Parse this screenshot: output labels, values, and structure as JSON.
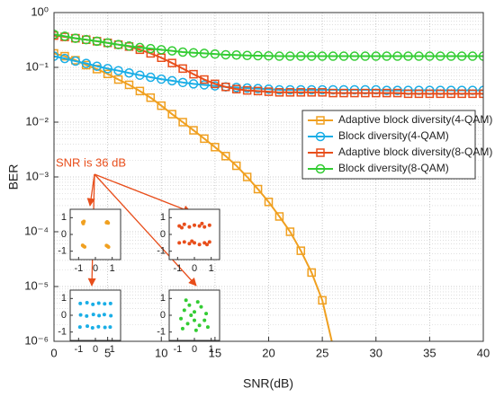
{
  "chart_data": [
    {
      "type": "line",
      "x_label": "SNR(dB)",
      "y_label": "BER",
      "y_log": true,
      "grid": true,
      "legend": "east",
      "annotation": "SNR is 36 dB",
      "x": [
        0,
        1,
        2,
        3,
        4,
        5,
        6,
        7,
        8,
        9,
        10,
        11,
        12,
        13,
        14,
        15,
        16,
        17,
        18,
        19,
        20,
        21,
        22,
        23,
        24,
        25,
        26,
        27,
        28,
        29,
        30,
        31,
        32,
        33,
        34,
        35,
        36,
        37,
        38,
        39,
        40
      ],
      "xlim": [
        0,
        40
      ],
      "xticks": [
        0,
        5,
        10,
        15,
        20,
        25,
        30,
        35,
        40
      ],
      "ylim": [
        1e-06,
        1
      ],
      "yticks": [
        {
          "value": 1,
          "label": "10⁰"
        },
        {
          "value": 0.1,
          "label": "10⁻¹"
        },
        {
          "value": 0.01,
          "label": "10⁻²"
        },
        {
          "value": 0.001,
          "label": "10⁻³"
        },
        {
          "value": 0.0001,
          "label": "10⁻⁴"
        },
        {
          "value": 1e-05,
          "label": "10⁻⁵"
        },
        {
          "value": 1e-06,
          "label": "10⁻⁶"
        }
      ],
      "series": [
        {
          "name": "Adaptive block diversity(4-QAM)",
          "color": "#f0a020",
          "marker": "square",
          "values": [
            0.18,
            0.16,
            0.135,
            0.11,
            0.093,
            0.076,
            0.06,
            0.048,
            0.037,
            0.028,
            0.02,
            0.014,
            0.01,
            0.0071,
            0.005,
            0.0035,
            0.0024,
            0.0016,
            0.001,
            0.0006,
            0.00035,
            0.00019,
            0.0001,
            4.5e-05,
            1.8e-05,
            5.6e-06,
            8e-07,
            null,
            null,
            null,
            null,
            null,
            null,
            null,
            null,
            null,
            null,
            null,
            null,
            null,
            null
          ]
        },
        {
          "name": "Block diversity(4-QAM)",
          "color": "#1aaee6",
          "marker": "circle",
          "values": [
            0.16,
            0.145,
            0.13,
            0.118,
            0.105,
            0.095,
            0.087,
            0.079,
            0.072,
            0.066,
            0.061,
            0.057,
            0.053,
            0.05,
            0.048,
            0.046,
            0.044,
            0.043,
            0.042,
            0.041,
            0.04,
            0.039,
            0.039,
            0.039,
            0.039,
            0.039,
            0.039,
            0.039,
            0.039,
            0.039,
            0.039,
            0.038,
            0.038,
            0.038,
            0.038,
            0.038,
            0.038,
            0.038,
            0.038,
            0.038,
            0.038
          ]
        },
        {
          "name": "Adaptive block diversity(8-QAM)",
          "color": "#e84e1b",
          "marker": "square",
          "values": [
            0.38,
            0.36,
            0.34,
            0.32,
            0.3,
            0.28,
            0.26,
            0.24,
            0.21,
            0.18,
            0.15,
            0.12,
            0.095,
            0.075,
            0.06,
            0.05,
            0.044,
            0.04,
            0.038,
            0.037,
            0.036,
            0.035,
            0.035,
            0.035,
            0.035,
            0.035,
            0.034,
            0.034,
            0.034,
            0.034,
            0.034,
            0.034,
            0.034,
            0.033,
            0.033,
            0.033,
            0.033,
            0.033,
            0.033,
            0.033,
            0.033
          ]
        },
        {
          "name": "Block diversity(8-QAM)",
          "color": "#33cc33",
          "marker": "circle",
          "values": [
            0.4,
            0.37,
            0.34,
            0.32,
            0.3,
            0.28,
            0.26,
            0.245,
            0.23,
            0.22,
            0.21,
            0.2,
            0.19,
            0.185,
            0.18,
            0.175,
            0.17,
            0.168,
            0.165,
            0.163,
            0.162,
            0.16,
            0.16,
            0.16,
            0.16,
            0.16,
            0.16,
            0.16,
            0.16,
            0.16,
            0.16,
            0.16,
            0.16,
            0.16,
            0.16,
            0.16,
            0.16,
            0.16,
            0.16,
            0.16,
            0.16
          ]
        }
      ]
    },
    {
      "type": "scatter",
      "color": "#f0a020",
      "xlim": [
        -1.5,
        1.5
      ],
      "ylim": [
        -1.5,
        1.5
      ],
      "xticks": [
        -1,
        0,
        1
      ],
      "yticks": [
        -1,
        0,
        1
      ],
      "x": [
        -0.75,
        -0.68,
        -0.72,
        0.7,
        0.76,
        0.66,
        -0.7,
        -0.76,
        -0.64,
        0.72,
        0.66,
        0.78
      ],
      "y": [
        0.72,
        0.78,
        0.65,
        0.75,
        0.68,
        0.7,
        -0.7,
        -0.65,
        -0.74,
        -0.7,
        -0.66,
        -0.75
      ]
    },
    {
      "type": "scatter",
      "color": "#e84e1b",
      "xlim": [
        -1.5,
        1.5
      ],
      "ylim": [
        -1.5,
        1.5
      ],
      "xticks": [
        -1,
        0,
        1
      ],
      "yticks": [
        -1,
        0,
        1
      ],
      "x": [
        -0.9,
        -0.6,
        -0.3,
        0,
        0.3,
        0.6,
        0.9,
        -0.75,
        0.45,
        -0.9,
        -0.6,
        -0.3,
        0,
        0.3,
        0.6,
        0.9,
        -0.15,
        0.75
      ],
      "y": [
        0.5,
        0.6,
        0.45,
        0.55,
        0.5,
        0.45,
        0.55,
        0.4,
        0.65,
        -0.5,
        -0.45,
        -0.55,
        -0.5,
        -0.6,
        -0.5,
        -0.45,
        -0.4,
        -0.6
      ]
    },
    {
      "type": "scatter",
      "color": "#1aaee6",
      "xlim": [
        -1.5,
        1.5
      ],
      "ylim": [
        -1.5,
        1.5
      ],
      "xticks": [
        -1,
        0,
        1
      ],
      "yticks": [
        -1,
        0,
        1
      ],
      "x": [
        -0.9,
        -0.5,
        -0.15,
        0.2,
        0.55,
        0.9,
        -0.88,
        -0.52,
        -0.12,
        0.22,
        0.53,
        0.92,
        -0.92,
        -0.48,
        -0.17,
        0.18,
        0.57,
        0.88
      ],
      "y": [
        0.7,
        0.75,
        0.65,
        0.72,
        0.68,
        0.7,
        0.02,
        -0.05,
        0.05,
        -0.02,
        0.04,
        -0.03,
        -0.7,
        -0.65,
        -0.75,
        -0.68,
        -0.72,
        -0.7
      ]
    },
    {
      "type": "scatter",
      "color": "#33cc33",
      "xlim": [
        -1.5,
        1.5
      ],
      "ylim": [
        -1.5,
        1.5
      ],
      "xticks": [
        -1,
        0,
        1
      ],
      "yticks": [
        -1,
        0,
        1
      ],
      "x": [
        -0.6,
        -0.3,
        0,
        0.4,
        0.7,
        -0.8,
        -0.4,
        0,
        0.3,
        0.6,
        -0.2,
        0.2,
        -0.5,
        0.8,
        -0.7,
        0.1
      ],
      "y": [
        0.3,
        0.6,
        0.2,
        0.5,
        0.1,
        -0.2,
        -0.5,
        -0.3,
        -0.6,
        -0.3,
        0,
        0.8,
        0.9,
        -0.7,
        -0.8,
        -0.9
      ]
    }
  ]
}
